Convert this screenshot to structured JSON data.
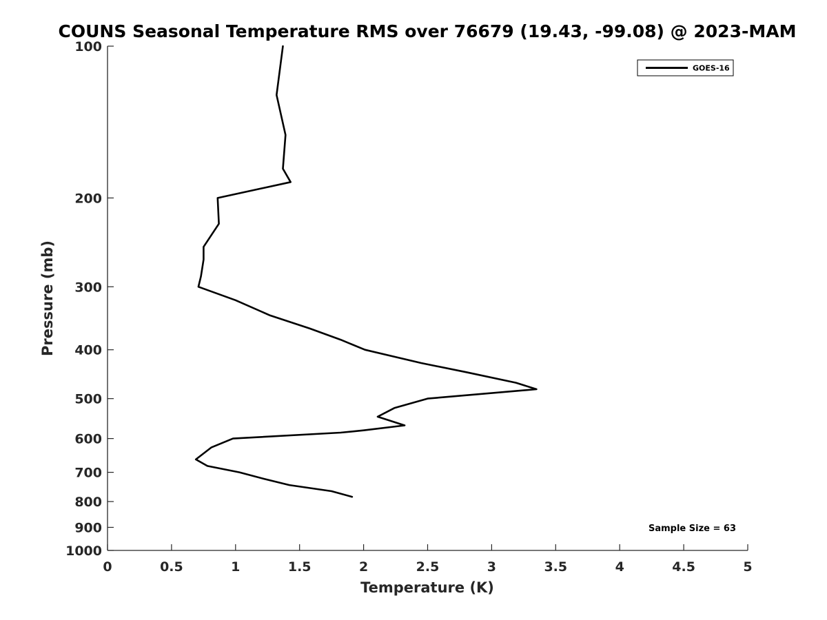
{
  "chart_data": {
    "type": "line",
    "title": "COUNS Seasonal Temperature RMS over 76679 (19.43, -99.08) @ 2023-MAM",
    "xlabel": "Temperature (K)",
    "ylabel": "Pressure (mb)",
    "xlim": [
      0,
      5
    ],
    "ylim": [
      100,
      1000
    ],
    "yscale": "log",
    "y_reversed": true,
    "grid": false,
    "legend_position": "top-right",
    "x_ticks": [
      0,
      0.5,
      1,
      1.5,
      2,
      2.5,
      3,
      3.5,
      4,
      4.5,
      5
    ],
    "x_tick_labels": [
      "0",
      "0.5",
      "1",
      "1.5",
      "2",
      "2.5",
      "3",
      "3.5",
      "4",
      "4.5",
      "5"
    ],
    "y_ticks": [
      100,
      200,
      300,
      400,
      500,
      600,
      700,
      800,
      900,
      1000
    ],
    "y_tick_labels": [
      "100",
      "200",
      "300",
      "400",
      "500",
      "600",
      "700",
      "800",
      "900",
      "1000"
    ],
    "series": [
      {
        "name": "GOES-16",
        "color": "#000000",
        "points": [
          [
            1.37,
            100
          ],
          [
            1.32,
            125
          ],
          [
            1.39,
            150
          ],
          [
            1.37,
            175
          ],
          [
            1.43,
            186
          ],
          [
            0.86,
            200
          ],
          [
            0.87,
            225
          ],
          [
            0.75,
            250
          ],
          [
            0.75,
            265
          ],
          [
            0.73,
            286
          ],
          [
            0.71,
            300
          ],
          [
            1.0,
            319
          ],
          [
            1.27,
            342
          ],
          [
            1.58,
            363
          ],
          [
            1.82,
            382
          ],
          [
            2.01,
            400
          ],
          [
            2.45,
            425
          ],
          [
            2.8,
            443
          ],
          [
            3.19,
            465
          ],
          [
            3.35,
            479
          ],
          [
            2.5,
            500
          ],
          [
            2.24,
            522
          ],
          [
            2.11,
            543
          ],
          [
            2.32,
            565
          ],
          [
            2.0,
            578
          ],
          [
            1.82,
            584
          ],
          [
            0.98,
            600
          ],
          [
            0.81,
            625
          ],
          [
            0.69,
            660
          ],
          [
            0.78,
            680
          ],
          [
            1.03,
            700
          ],
          [
            1.22,
            721
          ],
          [
            1.42,
            742
          ],
          [
            1.75,
            763
          ],
          [
            1.91,
            783
          ]
        ]
      }
    ],
    "annotations": [
      "Sample Size = 63"
    ]
  }
}
